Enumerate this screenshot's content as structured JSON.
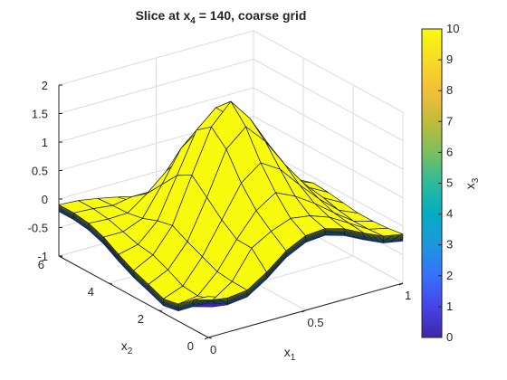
{
  "chart_data": {
    "type": "surface",
    "title_parts": {
      "pre": "Slice  at  x",
      "sub": "4",
      "post": "  =  140,  coarse  grid"
    },
    "xlabel": {
      "base": "x",
      "sub": "1"
    },
    "ylabel": {
      "base": "x",
      "sub": "2"
    },
    "colorbar_label": {
      "base": "x",
      "sub": "3"
    },
    "xlim": [
      0,
      1
    ],
    "ylim": [
      0,
      6
    ],
    "zlim": [
      -1,
      2
    ],
    "x_ticks": [
      "0",
      "0.5",
      "1"
    ],
    "x_tick_values": [
      0,
      0.5,
      1
    ],
    "y_ticks": [
      "0",
      "2",
      "4",
      "6"
    ],
    "y_tick_values": [
      0,
      2,
      4,
      6
    ],
    "z_ticks": [
      "-1",
      "-0.5",
      "0",
      "0.5",
      "1",
      "1.5",
      "2"
    ],
    "z_tick_values": [
      -1,
      -0.5,
      0,
      0.5,
      1,
      1.5,
      2
    ],
    "colorbar_ticks": [
      "0",
      "1",
      "2",
      "3",
      "4",
      "5",
      "6",
      "7",
      "8",
      "9",
      "10"
    ],
    "colorbar_range": [
      0,
      10
    ],
    "grid": true,
    "x": [
      0,
      0.1,
      0.2,
      0.3,
      0.4,
      0.5,
      0.6,
      0.7,
      0.8,
      0.9,
      1.0
    ],
    "y": [
      0,
      0.6,
      1.2,
      1.8,
      2.4,
      3.0,
      3.6,
      4.2,
      4.8,
      5.4,
      6.0
    ],
    "isosurfaces": [
      {
        "level": 10,
        "color": "#f9fb0e",
        "z": [
          [
            -0.28,
            -0.4,
            -0.36,
            -0.14,
            0.14,
            0.31,
            0.34,
            0.24,
            0.07,
            -0.08,
            -0.14
          ],
          [
            -0.48,
            -0.58,
            -0.35,
            0.14,
            0.34,
            0.47,
            0.42,
            0.3,
            0.1,
            -0.1,
            -0.18
          ],
          [
            -0.7,
            -0.65,
            -0.32,
            0.15,
            0.56,
            0.78,
            0.62,
            0.4,
            0.14,
            -0.1,
            -0.2
          ],
          [
            -0.75,
            -0.62,
            -0.2,
            0.35,
            0.9,
            1.16,
            0.95,
            0.58,
            0.24,
            -0.05,
            -0.2
          ],
          [
            -0.64,
            -0.48,
            -0.08,
            0.6,
            1.35,
            1.65,
            1.3,
            0.8,
            0.36,
            0.02,
            -0.16
          ],
          [
            -0.54,
            -0.36,
            0.06,
            0.85,
            1.6,
            1.95,
            1.55,
            0.98,
            0.46,
            0.06,
            -0.12
          ],
          [
            -0.4,
            -0.32,
            0.0,
            0.7,
            1.4,
            1.7,
            1.4,
            0.86,
            0.38,
            0.04,
            -0.1
          ],
          [
            -0.24,
            -0.24,
            -0.1,
            0.4,
            0.95,
            1.2,
            1.0,
            0.58,
            0.2,
            -0.08,
            -0.18
          ],
          [
            -0.14,
            -0.16,
            -0.15,
            0.1,
            0.4,
            0.6,
            0.5,
            0.22,
            -0.05,
            -0.25,
            -0.34
          ],
          [
            -0.1,
            -0.12,
            -0.16,
            -0.1,
            -0.1,
            -0.05,
            -0.08,
            -0.24,
            -0.44,
            -0.62,
            -0.7
          ],
          [
            -0.1,
            -0.12,
            -0.18,
            -0.25,
            -0.44,
            -0.7,
            -0.8,
            -0.86,
            -0.92,
            -0.96,
            -1.0
          ]
        ]
      },
      {
        "level": 0,
        "color": "#3e26a8",
        "offset": -0.12
      }
    ],
    "layers": [
      {
        "level": 2,
        "color": "#2c7efa"
      },
      {
        "level": 3,
        "color": "#1e9cd8"
      },
      {
        "level": 4,
        "color": "#0fb4b8"
      },
      {
        "level": 5,
        "color": "#23bd98"
      },
      {
        "level": 6,
        "color": "#6cc36a"
      },
      {
        "level": 7,
        "color": "#b4be3c"
      },
      {
        "level": 8,
        "color": "#f0ba36"
      },
      {
        "level": 9,
        "color": "#fed530"
      }
    ],
    "colormap": [
      "#3e26a8",
      "#4744e7",
      "#3671fd",
      "#1c97dc",
      "#05acc2",
      "#2bba9c",
      "#7bbf5f",
      "#c0bc39",
      "#f5be3a",
      "#f6dc24",
      "#f9fb0e"
    ]
  }
}
